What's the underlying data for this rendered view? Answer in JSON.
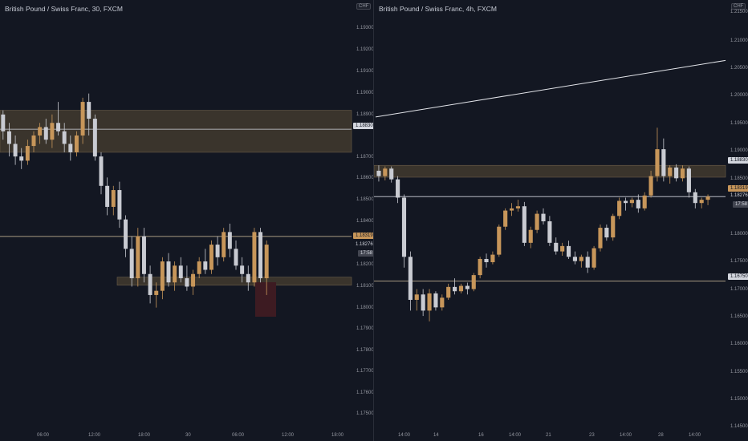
{
  "colors": {
    "background": "#131722",
    "bull": "#c7965a",
    "bear": "#c9cbd2",
    "zone": "#3a342c",
    "zone_edge": "#6b5e4a",
    "level_line": "#d9c4a0",
    "ask_line": "#d3d6de",
    "trend_line": "#e3e5ea",
    "red_box": "#3d1b22",
    "axis_text": "#9598a1"
  },
  "left_chart": {
    "title": "British Pound / Swiss Franc, 30, FXCM",
    "price_ticks": [
      "1.19300",
      "1.19200",
      "1.19100",
      "1.19000",
      "1.18900",
      "1.18700",
      "1.18600",
      "1.18500",
      "1.18400",
      "1.18200",
      "1.18100",
      "1.18000",
      "1.17900",
      "1.17800",
      "1.17700",
      "1.17600",
      "1.17500"
    ],
    "time_ticks": [
      "06:00",
      "12:00",
      "18:00",
      "30",
      "06:00",
      "12:00",
      "18:00"
    ],
    "badges": {
      "level": "1.18830",
      "bid": "1.18319",
      "ask": "1.18276",
      "countdown": "17:58"
    }
  },
  "right_chart": {
    "title": "British Pound / Swiss Franc, 4h, FXCM",
    "currency": "CHF",
    "price_ticks": [
      "1.21500",
      "1.21000",
      "1.20500",
      "1.20000",
      "1.19500",
      "1.19000",
      "1.18500",
      "1.18000",
      "1.17500",
      "1.17000",
      "1.16500",
      "1.16000",
      "1.15500",
      "1.15000",
      "1.14500",
      "1.14000"
    ],
    "time_ticks": [
      "14:00",
      "14",
      "16",
      "14:00",
      "21",
      "23",
      "14:00",
      "28",
      "14:00"
    ],
    "badges": {
      "level": "1.18830",
      "bid": "1.18319",
      "ask": "1.18276",
      "countdown": "17:58",
      "low_level": "1.16750"
    }
  },
  "left_divider_currency": "CHF",
  "chart_data": [
    {
      "type": "candlestick",
      "title": "British Pound / Swiss Franc, 30, FXCM",
      "ylim": [
        1.1744,
        1.1935
      ],
      "support_zone": [
        1.18105,
        1.18125
      ],
      "resistance_zone": [
        1.1872,
        1.1892
      ],
      "levels": [
        1.1883,
        1.18319
      ],
      "candles": [
        [
          1.189,
          1.1892,
          1.1878,
          1.1882
        ],
        [
          1.1882,
          1.1886,
          1.187,
          1.1876
        ],
        [
          1.1876,
          1.188,
          1.1866,
          1.187
        ],
        [
          1.187,
          1.1874,
          1.1864,
          1.1868
        ],
        [
          1.1868,
          1.1878,
          1.1866,
          1.1875
        ],
        [
          1.1875,
          1.1882,
          1.1872,
          1.188
        ],
        [
          1.188,
          1.1886,
          1.1876,
          1.1884
        ],
        [
          1.1884,
          1.1888,
          1.1876,
          1.1878
        ],
        [
          1.1878,
          1.189,
          1.1874,
          1.1886
        ],
        [
          1.1886,
          1.1896,
          1.188,
          1.1882
        ],
        [
          1.1882,
          1.1886,
          1.1872,
          1.1876
        ],
        [
          1.1876,
          1.188,
          1.1868,
          1.1872
        ],
        [
          1.1872,
          1.1882,
          1.187,
          1.188
        ],
        [
          1.188,
          1.1898,
          1.1876,
          1.1896
        ],
        [
          1.1896,
          1.19,
          1.188,
          1.1888
        ],
        [
          1.1888,
          1.189,
          1.1868,
          1.187
        ],
        [
          1.187,
          1.1872,
          1.1852,
          1.1856
        ],
        [
          1.1856,
          1.186,
          1.1842,
          1.1846
        ],
        [
          1.1846,
          1.1856,
          1.1842,
          1.1854
        ],
        [
          1.1854,
          1.1858,
          1.1836,
          1.184
        ],
        [
          1.184,
          1.1842,
          1.1822,
          1.1826
        ],
        [
          1.1826,
          1.1832,
          1.1808,
          1.1812
        ],
        [
          1.1812,
          1.1836,
          1.1808,
          1.1832
        ],
        [
          1.1832,
          1.1836,
          1.181,
          1.1814
        ],
        [
          1.1814,
          1.1818,
          1.18,
          1.1804
        ],
        [
          1.1804,
          1.181,
          1.1798,
          1.1806
        ],
        [
          1.1806,
          1.1822,
          1.1802,
          1.182
        ],
        [
          1.182,
          1.1824,
          1.1808,
          1.181
        ],
        [
          1.181,
          1.182,
          1.1806,
          1.1818
        ],
        [
          1.1818,
          1.1822,
          1.181,
          1.1812
        ],
        [
          1.1812,
          1.1818,
          1.1806,
          1.1808
        ],
        [
          1.1808,
          1.1816,
          1.1804,
          1.1814
        ],
        [
          1.1814,
          1.1822,
          1.1812,
          1.182
        ],
        [
          1.182,
          1.1826,
          1.1814,
          1.1816
        ],
        [
          1.1816,
          1.183,
          1.1814,
          1.1828
        ],
        [
          1.1828,
          1.1832,
          1.1818,
          1.1822
        ],
        [
          1.1822,
          1.1836,
          1.182,
          1.1834
        ],
        [
          1.1834,
          1.1838,
          1.1822,
          1.1826
        ],
        [
          1.1826,
          1.183,
          1.1816,
          1.1818
        ],
        [
          1.1818,
          1.1822,
          1.181,
          1.1814
        ],
        [
          1.1814,
          1.1818,
          1.1806,
          1.181
        ],
        [
          1.181,
          1.1836,
          1.1808,
          1.1834
        ],
        [
          1.1834,
          1.1836,
          1.181,
          1.1812
        ],
        [
          1.1812,
          1.183,
          1.1804,
          1.1828
        ]
      ]
    },
    {
      "type": "candlestick",
      "title": "British Pound / Swiss Franc, 4h, FXCM",
      "ylim": [
        1.14,
        1.2175
      ],
      "resistance_zone": [
        1.1868,
        1.189
      ],
      "levels": [
        1.18319,
        1.1675
      ],
      "trend_line": [
        [
          0,
          1.198
        ],
        [
          1,
          1.2085
        ]
      ],
      "candles": [
        [
          1.188,
          1.189,
          1.186,
          1.187
        ],
        [
          1.187,
          1.1888,
          1.1862,
          1.1884
        ],
        [
          1.1884,
          1.1888,
          1.1858,
          1.1864
        ],
        [
          1.1864,
          1.187,
          1.182,
          1.183
        ],
        [
          1.183,
          1.1836,
          1.17,
          1.172
        ],
        [
          1.172,
          1.173,
          1.162,
          1.164
        ],
        [
          1.164,
          1.166,
          1.162,
          1.165
        ],
        [
          1.165,
          1.166,
          1.161,
          1.162
        ],
        [
          1.162,
          1.166,
          1.16,
          1.1652
        ],
        [
          1.1652,
          1.1656,
          1.162,
          1.1626
        ],
        [
          1.1626,
          1.165,
          1.162,
          1.1644
        ],
        [
          1.1644,
          1.167,
          1.164,
          1.1664
        ],
        [
          1.1664,
          1.168,
          1.165,
          1.1656
        ],
        [
          1.1656,
          1.167,
          1.1652,
          1.1666
        ],
        [
          1.1666,
          1.1672,
          1.165,
          1.166
        ],
        [
          1.166,
          1.169,
          1.1656,
          1.1686
        ],
        [
          1.1686,
          1.172,
          1.168,
          1.1716
        ],
        [
          1.1716,
          1.1726,
          1.17,
          1.171
        ],
        [
          1.171,
          1.173,
          1.1706,
          1.1724
        ],
        [
          1.1724,
          1.178,
          1.172,
          1.1776
        ],
        [
          1.1776,
          1.181,
          1.177,
          1.1806
        ],
        [
          1.1806,
          1.182,
          1.1796,
          1.181
        ],
        [
          1.181,
          1.1826,
          1.1804,
          1.1814
        ],
        [
          1.1814,
          1.1822,
          1.174,
          1.1746
        ],
        [
          1.1746,
          1.1776,
          1.1736,
          1.177
        ],
        [
          1.177,
          1.1806,
          1.1764,
          1.18
        ],
        [
          1.18,
          1.181,
          1.178,
          1.1786
        ],
        [
          1.1786,
          1.1796,
          1.174,
          1.1746
        ],
        [
          1.1746,
          1.1756,
          1.1724,
          1.173
        ],
        [
          1.173,
          1.1746,
          1.1722,
          1.174
        ],
        [
          1.174,
          1.175,
          1.1716,
          1.172
        ],
        [
          1.172,
          1.173,
          1.1706,
          1.1712
        ],
        [
          1.1712,
          1.1724,
          1.17,
          1.172
        ],
        [
          1.172,
          1.173,
          1.169,
          1.17
        ],
        [
          1.17,
          1.174,
          1.1696,
          1.1736
        ],
        [
          1.1736,
          1.178,
          1.173,
          1.1774
        ],
        [
          1.1774,
          1.178,
          1.175,
          1.1756
        ],
        [
          1.1756,
          1.18,
          1.175,
          1.1796
        ],
        [
          1.1796,
          1.183,
          1.179,
          1.1824
        ],
        [
          1.1824,
          1.183,
          1.1806,
          1.182
        ],
        [
          1.182,
          1.183,
          1.1812,
          1.1826
        ],
        [
          1.1826,
          1.1836,
          1.1802,
          1.181
        ],
        [
          1.181,
          1.184,
          1.1806,
          1.1834
        ],
        [
          1.1834,
          1.188,
          1.183,
          1.187
        ],
        [
          1.187,
          1.196,
          1.186,
          1.192
        ],
        [
          1.192,
          1.194,
          1.186,
          1.187
        ],
        [
          1.187,
          1.189,
          1.1856,
          1.1886
        ],
        [
          1.1886,
          1.1892,
          1.186,
          1.1866
        ],
        [
          1.1866,
          1.189,
          1.186,
          1.1884
        ],
        [
          1.1884,
          1.1888,
          1.183,
          1.184
        ],
        [
          1.184,
          1.1846,
          1.181,
          1.182
        ],
        [
          1.182,
          1.183,
          1.181,
          1.1826
        ],
        [
          1.1826,
          1.1836,
          1.1816,
          1.1832
        ]
      ]
    }
  ]
}
